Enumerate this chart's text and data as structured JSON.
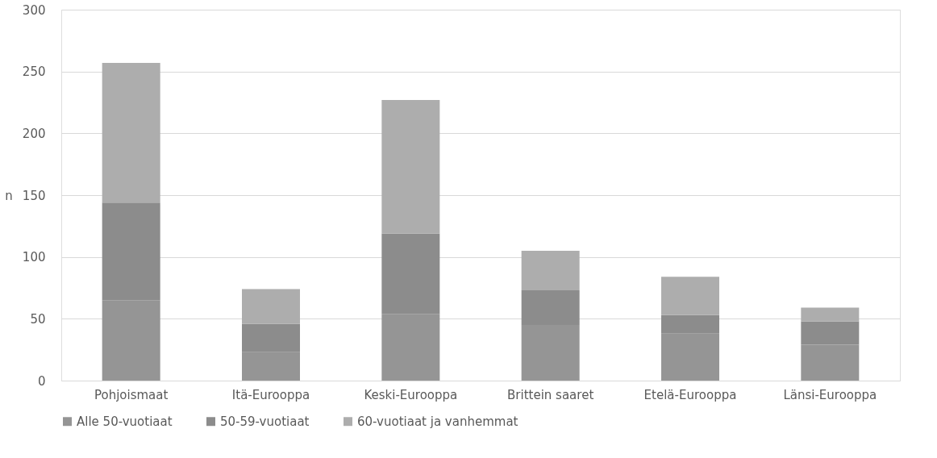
{
  "chart_data": {
    "type": "bar",
    "stacked": true,
    "ylabel": "n",
    "categories": [
      "Pohjoismaat",
      "Itä-Eurooppa",
      "Keski-Eurooppa",
      "Brittein saaret",
      "Etelä-Eurooppa",
      "Länsi-Eurooppa"
    ],
    "series": [
      {
        "name": "Alle 50-vuotiaat",
        "color": "#959595",
        "values": [
          65,
          23,
          54,
          45,
          38,
          29
        ]
      },
      {
        "name": "50-59-vuotiaat",
        "color": "#8c8c8c",
        "values": [
          79,
          23,
          65,
          28,
          15,
          19
        ]
      },
      {
        "name": "60-vuotiaat ja vanhemmat",
        "color": "#adadad",
        "values": [
          113,
          28,
          108,
          32,
          31,
          11
        ]
      }
    ],
    "ylim": [
      0,
      300
    ],
    "yticks": [
      0,
      50,
      100,
      150,
      200,
      250,
      300
    ],
    "grid": "y",
    "legend": "bottom"
  }
}
